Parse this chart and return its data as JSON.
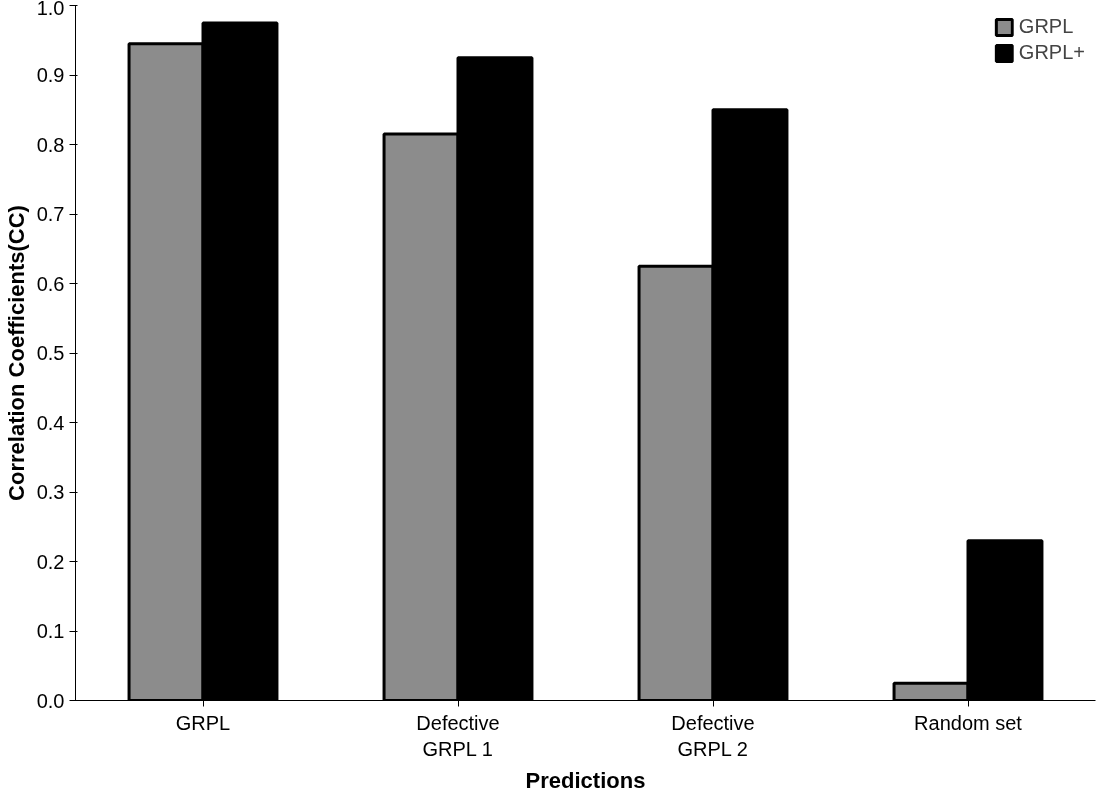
{
  "chart_data": {
    "type": "bar",
    "xlabel": "Predictions",
    "ylabel": "Correlation Coefficients(CC)",
    "categories": [
      "GRPL",
      "Defective\nGRPL 1",
      "Defective\nGRPL 2",
      "Random set"
    ],
    "series": [
      {
        "name": "GRPL",
        "color": "#8c8c8c",
        "values": [
          0.945,
          0.815,
          0.625,
          0.025
        ]
      },
      {
        "name": "GRPL+",
        "color": "#000000",
        "values": [
          0.975,
          0.925,
          0.85,
          0.23
        ]
      }
    ],
    "ylim": [
      0,
      1.0
    ],
    "yticks": [
      {
        "value": 0,
        "label": "0.0"
      },
      {
        "value": 0.1,
        "label": "0.1"
      },
      {
        "value": 0.2,
        "label": "0.2"
      },
      {
        "value": 0.3,
        "label": "0.3"
      },
      {
        "value": 0.4,
        "label": "0.4"
      },
      {
        "value": 0.5,
        "label": "0.5"
      },
      {
        "value": 0.6,
        "label": "0.6"
      },
      {
        "value": 0.7,
        "label": "0.7"
      },
      {
        "value": 0.8,
        "label": "0.8"
      },
      {
        "value": 0.9,
        "label": "0.9"
      },
      {
        "value": 1.0,
        "label": "1.0"
      }
    ],
    "grid": false,
    "legend": "top right"
  }
}
